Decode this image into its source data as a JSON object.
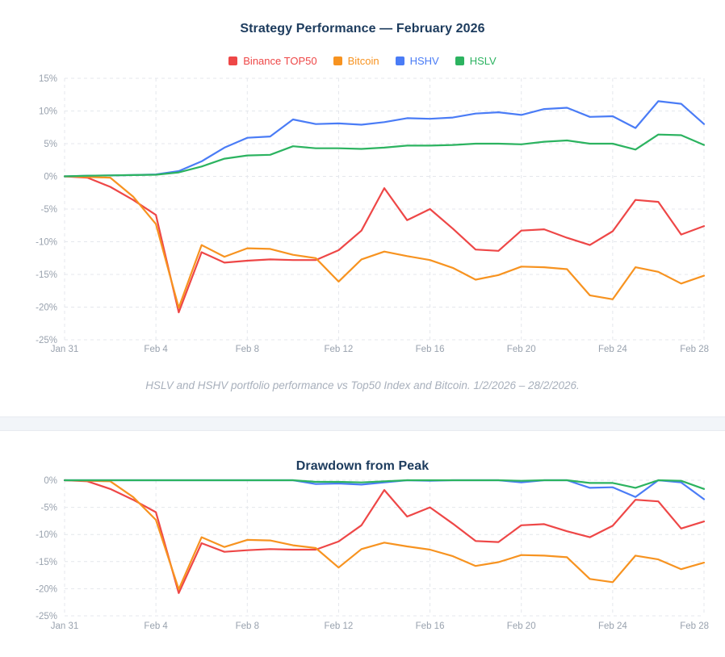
{
  "page": {
    "title1": "Strategy Performance — February 2026",
    "caption": "HSLV and HSHV portfolio performance vs Top50 Index and Bitcoin. 1/2/2026 – 28/2/2026.",
    "title2": "Drawdown from Peak"
  },
  "colors": {
    "binance_top50": "#ee4747",
    "bitcoin": "#f79320",
    "hshv": "#4a7cf6",
    "hslv": "#2cb360",
    "title_navy": "#1c3b5d",
    "grid": "#e4e7ec",
    "tick_text": "#99a2ae",
    "divider_band": "#f2f5f9"
  },
  "legend": [
    {
      "label": "Binance TOP50",
      "color": "#ee4747"
    },
    {
      "label": "Bitcoin",
      "color": "#f79320"
    },
    {
      "label": "HSHV",
      "color": "#4a7cf6"
    },
    {
      "label": "HSLV",
      "color": "#2cb360"
    }
  ],
  "chart_data": [
    {
      "type": "line",
      "title": "Strategy Performance — February 2026",
      "x_dates": [
        "Jan 31",
        "Feb 1",
        "Feb 2",
        "Feb 3",
        "Feb 4",
        "Feb 5",
        "Feb 6",
        "Feb 7",
        "Feb 8",
        "Feb 9",
        "Feb 10",
        "Feb 11",
        "Feb 12",
        "Feb 13",
        "Feb 14",
        "Feb 15",
        "Feb 16",
        "Feb 17",
        "Feb 18",
        "Feb 19",
        "Feb 20",
        "Feb 21",
        "Feb 22",
        "Feb 23",
        "Feb 24",
        "Feb 25",
        "Feb 26",
        "Feb 27",
        "Feb 28"
      ],
      "x_tick_days": [
        0,
        4,
        8,
        12,
        16,
        20,
        24,
        28
      ],
      "x_tick_labels": [
        "Jan 31",
        "Feb 4",
        "Feb 8",
        "Feb 12",
        "Feb 16",
        "Feb 20",
        "Feb 24",
        "Feb 28"
      ],
      "ylabel": "",
      "ylim": [
        -25,
        15
      ],
      "y_ticks": [
        15,
        10,
        5,
        0,
        -5,
        -10,
        -15,
        -20,
        -25
      ],
      "y_tick_labels": [
        "15%",
        "10%",
        "5%",
        "0%",
        "-5%",
        "-10%",
        "-15%",
        "-20%",
        "-25%"
      ],
      "grid": true,
      "legend_position": "top-center",
      "unit": "percent",
      "series": [
        {
          "name": "Binance TOP50",
          "color": "#ee4747",
          "values": [
            0,
            -0.2,
            -1.6,
            -3.6,
            -5.9,
            -20.8,
            -11.6,
            -13.2,
            -12.9,
            -12.7,
            -12.8,
            -12.8,
            -11.3,
            -8.3,
            -1.8,
            -6.7,
            -5.0,
            -8.0,
            -11.2,
            -11.4,
            -8.3,
            -8.1,
            -9.4,
            -10.5,
            -8.4,
            -3.6,
            -3.9,
            -8.9,
            -7.6
          ]
        },
        {
          "name": "Bitcoin",
          "color": "#f79320",
          "values": [
            0,
            -0.1,
            -0.2,
            -3.1,
            -7.3,
            -20.1,
            -10.5,
            -12.3,
            -11.0,
            -11.1,
            -12.0,
            -12.5,
            -16.1,
            -12.7,
            -11.5,
            -12.2,
            -12.8,
            -14.0,
            -15.8,
            -15.1,
            -13.8,
            -13.9,
            -14.2,
            -18.2,
            -18.8,
            -13.9,
            -14.6,
            -16.4,
            -15.2
          ]
        },
        {
          "name": "HSHV",
          "color": "#4a7cf6",
          "values": [
            0,
            0.1,
            0.15,
            0.2,
            0.3,
            0.8,
            2.3,
            4.4,
            5.9,
            6.1,
            8.7,
            8.0,
            8.1,
            7.9,
            8.3,
            8.9,
            8.8,
            9.0,
            9.6,
            9.8,
            9.4,
            10.3,
            10.5,
            9.1,
            9.2,
            7.4,
            11.5,
            11.1,
            8.0
          ]
        },
        {
          "name": "HSLV",
          "color": "#2cb360",
          "values": [
            0,
            0.1,
            0.15,
            0.2,
            0.25,
            0.6,
            1.5,
            2.7,
            3.2,
            3.3,
            4.6,
            4.3,
            4.3,
            4.2,
            4.4,
            4.7,
            4.7,
            4.8,
            5.0,
            5.0,
            4.9,
            5.3,
            5.5,
            5.0,
            5.0,
            4.1,
            6.4,
            6.3,
            4.8
          ]
        }
      ]
    },
    {
      "type": "line",
      "title": "Drawdown from Peak",
      "x_dates": [
        "Jan 31",
        "Feb 1",
        "Feb 2",
        "Feb 3",
        "Feb 4",
        "Feb 5",
        "Feb 6",
        "Feb 7",
        "Feb 8",
        "Feb 9",
        "Feb 10",
        "Feb 11",
        "Feb 12",
        "Feb 13",
        "Feb 14",
        "Feb 15",
        "Feb 16",
        "Feb 17",
        "Feb 18",
        "Feb 19",
        "Feb 20",
        "Feb 21",
        "Feb 22",
        "Feb 23",
        "Feb 24",
        "Feb 25",
        "Feb 26",
        "Feb 27",
        "Feb 28"
      ],
      "x_tick_days": [
        0,
        4,
        8,
        12,
        16,
        20,
        24,
        28
      ],
      "x_tick_labels": [
        "Jan 31",
        "Feb 4",
        "Feb 8",
        "Feb 12",
        "Feb 16",
        "Feb 20",
        "Feb 24",
        "Feb 28"
      ],
      "ylabel": "",
      "ylim": [
        -25,
        0
      ],
      "y_ticks": [
        0,
        -5,
        -10,
        -15,
        -20,
        -25
      ],
      "y_tick_labels": [
        "0%",
        "-5%",
        "-10%",
        "-15%",
        "-20%",
        "-25%"
      ],
      "grid": true,
      "legend_position": "none",
      "unit": "percent",
      "series": [
        {
          "name": "Binance TOP50",
          "color": "#ee4747",
          "values": [
            0,
            -0.2,
            -1.6,
            -3.6,
            -5.9,
            -20.8,
            -11.6,
            -13.2,
            -12.9,
            -12.7,
            -12.8,
            -12.8,
            -11.3,
            -8.3,
            -1.8,
            -6.7,
            -5.0,
            -8.0,
            -11.2,
            -11.4,
            -8.3,
            -8.1,
            -9.4,
            -10.5,
            -8.4,
            -3.6,
            -3.9,
            -8.9,
            -7.6
          ]
        },
        {
          "name": "Bitcoin",
          "color": "#f79320",
          "values": [
            0,
            -0.1,
            -0.2,
            -3.1,
            -7.3,
            -20.1,
            -10.5,
            -12.3,
            -11.0,
            -11.1,
            -12.0,
            -12.5,
            -16.1,
            -12.7,
            -11.5,
            -12.2,
            -12.8,
            -14.0,
            -15.8,
            -15.1,
            -13.8,
            -13.9,
            -14.2,
            -18.2,
            -18.8,
            -13.9,
            -14.6,
            -16.4,
            -15.2
          ]
        },
        {
          "name": "HSHV",
          "color": "#4a7cf6",
          "values": [
            0,
            0,
            0,
            0,
            0,
            0,
            0,
            0,
            0,
            0,
            0,
            -0.7,
            -0.6,
            -0.8,
            -0.4,
            0,
            -0.1,
            0,
            0,
            0,
            -0.4,
            0,
            0,
            -1.4,
            -1.3,
            -3.1,
            0,
            -0.4,
            -3.5
          ]
        },
        {
          "name": "HSLV",
          "color": "#2cb360",
          "values": [
            0,
            0,
            0,
            0,
            0,
            0,
            0,
            0,
            0,
            0,
            0,
            -0.3,
            -0.3,
            -0.4,
            -0.2,
            0,
            0,
            0,
            0,
            0,
            -0.1,
            0,
            0,
            -0.5,
            -0.5,
            -1.4,
            0,
            -0.1,
            -1.6
          ]
        }
      ]
    }
  ]
}
